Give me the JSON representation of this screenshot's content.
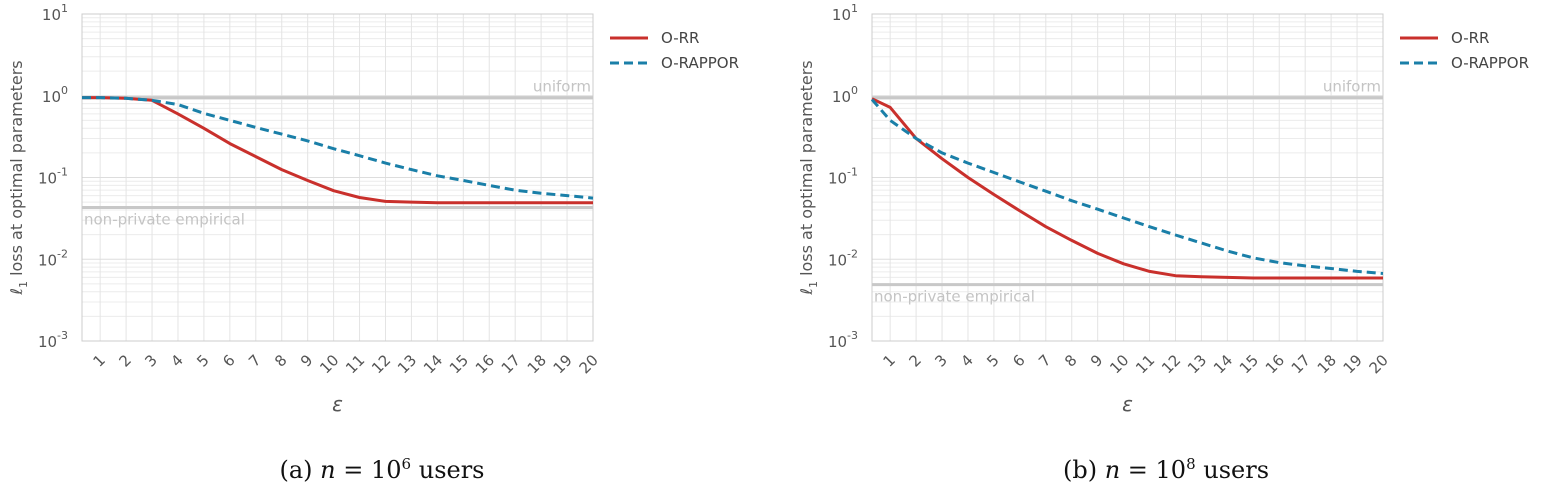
{
  "chart_data": [
    {
      "type": "line",
      "caption_prefix": "(a)",
      "caption_var": "n",
      "caption_eq": " = 10",
      "caption_exp": "6",
      "caption_suffix": " users",
      "xlabel": "ε",
      "ylabel_main": "ℓ",
      "ylabel_sub": "1",
      "ylabel_rest": " loss at optimal parameters",
      "yscale": "log",
      "ylim": [
        0.001,
        10
      ],
      "xlim": [
        0.3,
        20
      ],
      "x_ticks": [
        1,
        2,
        3,
        4,
        5,
        6,
        7,
        8,
        9,
        10,
        11,
        12,
        13,
        14,
        15,
        16,
        17,
        18,
        19,
        20
      ],
      "y_ticks": [
        {
          "base": "10",
          "exp": "-3"
        },
        {
          "base": "10",
          "exp": "-2"
        },
        {
          "base": "10",
          "exp": "-1"
        },
        {
          "base": "10",
          "exp": "0"
        },
        {
          "base": "10",
          "exp": "1"
        }
      ],
      "grid": true,
      "legend_position": "outside-right",
      "reference_lines": [
        {
          "label": "uniform",
          "value": 0.95
        },
        {
          "label": "non-private empirical",
          "value": 0.043
        }
      ],
      "series": [
        {
          "name": "O-RR",
          "style": "solid",
          "color": "#c9302c",
          "x": [
            0.3,
            1,
            2,
            3,
            4,
            5,
            6,
            7,
            8,
            9,
            10,
            11,
            12,
            13,
            14,
            15,
            16,
            17,
            18,
            19,
            20
          ],
          "y": [
            0.95,
            0.95,
            0.93,
            0.88,
            0.6,
            0.4,
            0.26,
            0.18,
            0.125,
            0.092,
            0.069,
            0.057,
            0.051,
            0.05,
            0.049,
            0.049,
            0.049,
            0.049,
            0.049,
            0.049,
            0.049
          ]
        },
        {
          "name": "O-RAPPOR",
          "style": "dashed",
          "color": "#1a7fa8",
          "x": [
            0.3,
            1,
            2,
            3,
            4,
            5,
            6,
            7,
            8,
            9,
            10,
            11,
            12,
            13,
            14,
            15,
            16,
            17,
            18,
            19,
            20
          ],
          "y": [
            0.95,
            0.95,
            0.93,
            0.88,
            0.78,
            0.61,
            0.5,
            0.41,
            0.34,
            0.28,
            0.225,
            0.185,
            0.15,
            0.125,
            0.105,
            0.092,
            0.08,
            0.07,
            0.064,
            0.06,
            0.056
          ]
        }
      ]
    },
    {
      "type": "line",
      "caption_prefix": "(b)",
      "caption_var": "n",
      "caption_eq": " = 10",
      "caption_exp": "8",
      "caption_suffix": " users",
      "xlabel": "ε",
      "ylabel_main": "ℓ",
      "ylabel_sub": "1",
      "ylabel_rest": " loss at optimal parameters",
      "yscale": "log",
      "ylim": [
        0.001,
        10
      ],
      "xlim": [
        0.3,
        20
      ],
      "x_ticks": [
        1,
        2,
        3,
        4,
        5,
        6,
        7,
        8,
        9,
        10,
        11,
        12,
        13,
        14,
        15,
        16,
        17,
        18,
        19,
        20
      ],
      "y_ticks": [
        {
          "base": "10",
          "exp": "-3"
        },
        {
          "base": "10",
          "exp": "-2"
        },
        {
          "base": "10",
          "exp": "-1"
        },
        {
          "base": "10",
          "exp": "0"
        },
        {
          "base": "10",
          "exp": "1"
        }
      ],
      "grid": true,
      "legend_position": "outside-right",
      "reference_lines": [
        {
          "label": "uniform",
          "value": 0.95
        },
        {
          "label": "non-private empirical",
          "value": 0.0049
        }
      ],
      "series": [
        {
          "name": "O-RR",
          "style": "solid",
          "color": "#c9302c",
          "x": [
            0.3,
            1,
            2,
            3,
            4,
            5,
            6,
            7,
            8,
            9,
            10,
            11,
            12,
            13,
            14,
            15,
            16,
            17,
            18,
            19,
            20
          ],
          "y": [
            0.92,
            0.72,
            0.3,
            0.17,
            0.1,
            0.062,
            0.039,
            0.025,
            0.017,
            0.0118,
            0.0088,
            0.0071,
            0.0063,
            0.0061,
            0.006,
            0.0059,
            0.0059,
            0.0059,
            0.0059,
            0.0059,
            0.0059
          ]
        },
        {
          "name": "O-RAPPOR",
          "style": "dashed",
          "color": "#1a7fa8",
          "x": [
            0.3,
            1,
            2,
            3,
            4,
            5,
            6,
            7,
            8,
            9,
            10,
            11,
            12,
            13,
            14,
            15,
            16,
            17,
            18,
            19,
            20
          ],
          "y": [
            0.9,
            0.5,
            0.3,
            0.2,
            0.15,
            0.115,
            0.088,
            0.068,
            0.052,
            0.041,
            0.032,
            0.025,
            0.0198,
            0.0158,
            0.0126,
            0.0104,
            0.0091,
            0.0083,
            0.0077,
            0.0071,
            0.0067
          ]
        }
      ]
    }
  ]
}
